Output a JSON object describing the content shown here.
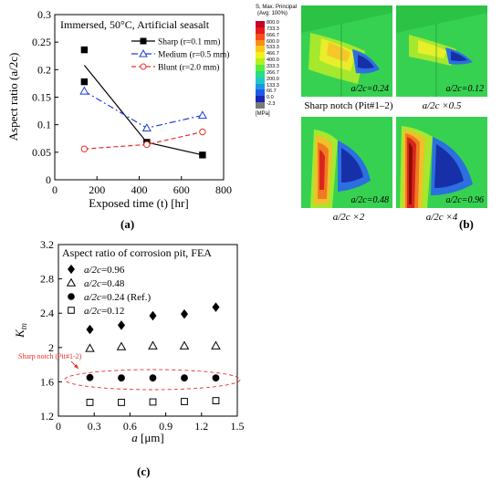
{
  "panel_a": {
    "label": "(a)",
    "chart_data": {
      "type": "line",
      "title": "Immersed, 50°C, Artificial seasalt",
      "xlabel": "Exposed time (t) [hr]",
      "ylabel": "Aspect ratio (a/2c)",
      "xlim": [
        0,
        800
      ],
      "ylim": [
        0,
        0.3
      ],
      "x_ticks": [
        "0",
        "200",
        "400",
        "600",
        "800"
      ],
      "y_ticks": [
        "0",
        "0.05",
        "0.1",
        "0.15",
        "0.2",
        "0.25",
        "0.3"
      ],
      "legend_position": "top-right",
      "series": [
        {
          "name": "Sharp (r=0.1 mm)",
          "color": "#000000",
          "marker": "filled-square",
          "line": "solid",
          "points": [
            [
              140,
              0.236
            ],
            [
              140,
              0.178
            ],
            [
              436,
              0.068
            ],
            [
              700,
              0.045
            ]
          ],
          "trend": [
            [
              140,
              0.208
            ],
            [
              436,
              0.068
            ],
            [
              700,
              0.045
            ]
          ]
        },
        {
          "name": "Medium (r=0.5 mm)",
          "color": "#1f3fd6",
          "marker": "open-triangle",
          "line": "dash-dot",
          "points": [
            [
              140,
              0.161
            ],
            [
              436,
              0.094
            ],
            [
              700,
              0.117
            ]
          ]
        },
        {
          "name": "Blunt (r=2.0 mm)",
          "color": "#e8302a",
          "marker": "open-circle",
          "line": "dashed",
          "points": [
            [
              140,
              0.056
            ],
            [
              436,
              0.064
            ],
            [
              700,
              0.087
            ]
          ]
        }
      ]
    }
  },
  "panel_b": {
    "label": "(b)",
    "colorbar": {
      "title_line1": "S, Max. Principal",
      "title_line2": "(Avg: 100%)",
      "unit": "[MPa]",
      "values": [
        "800.0",
        "733.3",
        "666.7",
        "600.0",
        "533.3",
        "466.7",
        "400.0",
        "333.3",
        "266.7",
        "200.0",
        "133.3",
        "66.7",
        "0.0",
        "-2.3"
      ],
      "colors": [
        "#c8002a",
        "#e61a1a",
        "#f5501a",
        "#fa8c1a",
        "#fac81a",
        "#f0f01a",
        "#b4f01e",
        "#5aeb3c",
        "#28dc82",
        "#1ec8c8",
        "#1e96e6",
        "#1e5ae6",
        "#1428b4",
        "#7a7a7a"
      ]
    },
    "images": [
      {
        "tag": "a/2c=0.24",
        "caption": "Sharp notch (Pit#1–2)"
      },
      {
        "tag": "a/2c=0.12",
        "caption": "a/2c ×0.5"
      },
      {
        "tag": "a/2c=0.48",
        "caption": "a/2c ×2"
      },
      {
        "tag": "a/2c=0.96",
        "caption": "a/2c ×4"
      }
    ]
  },
  "panel_c": {
    "label": "(c)",
    "chart_data": {
      "type": "scatter",
      "title": "Aspect ratio of corrosion pit, FEA",
      "xlabel": "a [μm]",
      "ylabel": "K_tn",
      "xlim": [
        0,
        1.5
      ],
      "ylim": [
        1.2,
        3.2
      ],
      "x_ticks": [
        "0",
        "0.3",
        "0.6",
        "0.9",
        "1.2",
        "1.5"
      ],
      "y_ticks": [
        "1.2",
        "1.6",
        "2",
        "2.4",
        "2.8",
        "3.2"
      ],
      "legend_position": "top-left",
      "annotation": "Sharp notch (Pit#1-2)",
      "x": [
        0.264,
        0.528,
        0.792,
        1.056,
        1.32
      ],
      "series": [
        {
          "name": "a/2c=0.96",
          "marker": "filled-diamond",
          "values": [
            2.21,
            2.26,
            2.37,
            2.39,
            2.47
          ]
        },
        {
          "name": "a/2c=0.48",
          "marker": "open-triangle",
          "values": [
            1.99,
            2.01,
            2.02,
            2.02,
            2.02
          ]
        },
        {
          "name": "a/2c=0.24 (Ref.)",
          "marker": "filled-circle",
          "values": [
            1.65,
            1.645,
            1.645,
            1.645,
            1.645
          ]
        },
        {
          "name": "a/2c=0.12",
          "marker": "open-square",
          "values": [
            1.36,
            1.36,
            1.365,
            1.37,
            1.38
          ]
        }
      ]
    }
  }
}
